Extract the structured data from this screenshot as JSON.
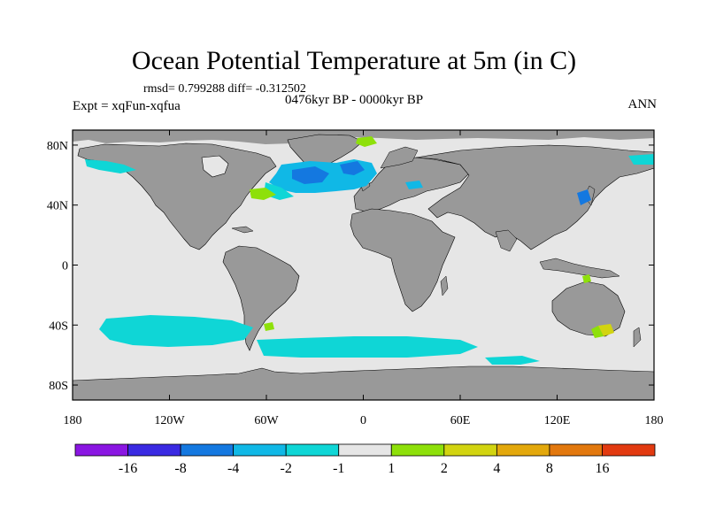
{
  "title": "Ocean Potential Temperature at 5m (in C)",
  "stats": "rmsd= 0.799288 diff= -0.312502",
  "experiment": "Expt = xqFun-xqfua",
  "period": "0476kyr BP - 0000kyr BP",
  "season": "ANN",
  "colors": {
    "land": "#999999",
    "ocean_neutral": "#e6e6e6",
    "coast": "#000000",
    "anom_minus1_minus2": "#0fd6d6",
    "anom_minus2_minus4": "#10b8e6",
    "anom_minus4_minus8": "#1478e0",
    "anom_plus1_plus2": "#8ee00a",
    "anom_plus2_plus4": "#d2d410"
  },
  "map": {
    "lat_ticks": [
      {
        "value": 80,
        "label": "80N"
      },
      {
        "value": 40,
        "label": "40N"
      },
      {
        "value": 0,
        "label": "0"
      },
      {
        "value": -40,
        "label": "40S"
      },
      {
        "value": -80,
        "label": "80S"
      }
    ],
    "lon_ticks": [
      {
        "value": -180,
        "label": "180"
      },
      {
        "value": -120,
        "label": "120W"
      },
      {
        "value": -60,
        "label": "60W"
      },
      {
        "value": 0,
        "label": "0"
      },
      {
        "value": 60,
        "label": "60E"
      },
      {
        "value": 120,
        "label": "120E"
      },
      {
        "value": 180,
        "label": "180"
      }
    ],
    "lat_range": [
      -90,
      90
    ],
    "lon_range": [
      -180,
      180
    ]
  },
  "colorbar": {
    "colors": [
      "#8a16e2",
      "#3a2ae2",
      "#1478e0",
      "#10b8e6",
      "#0fd6d6",
      "#e6e6e6",
      "#8ee00a",
      "#d2d410",
      "#e3a80c",
      "#e2780e",
      "#e23a10"
    ],
    "labels": [
      "-16",
      "-8",
      "-4",
      "-2",
      "-1",
      "1",
      "2",
      "4",
      "8",
      "16"
    ]
  }
}
